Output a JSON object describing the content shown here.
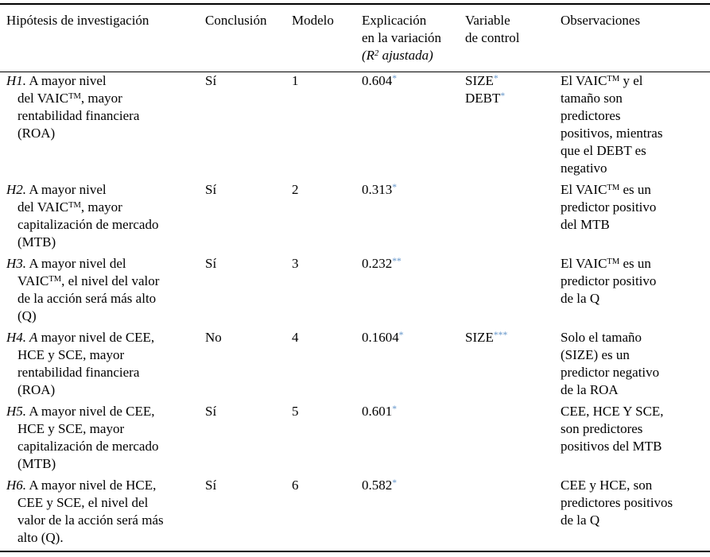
{
  "colors": {
    "significance_star": "#5f92c8",
    "text": "#000000",
    "rule": "#000000",
    "background": "#ffffff"
  },
  "table": {
    "headers": [
      {
        "text": "Hipótesis de investigación"
      },
      {
        "text": "Conclusión"
      },
      {
        "text": "Modelo"
      },
      {
        "rich": [
          {
            "t": "Explicación"
          },
          {
            "br": true
          },
          {
            "t": "en la variación"
          },
          {
            "br": true
          },
          {
            "t": "(R",
            "s": "i"
          },
          {
            "t": "2",
            "s": "i sup"
          },
          {
            "t": " ajustada)",
            "s": "i"
          }
        ]
      },
      {
        "rich": [
          {
            "t": "Variable"
          },
          {
            "br": true
          },
          {
            "t": "de control"
          }
        ]
      },
      {
        "text": "Observaciones"
      }
    ],
    "rows": [
      {
        "hypothesis": [
          {
            "t": "H1.",
            "s": "i"
          },
          {
            "t": " A mayor nivel"
          },
          {
            "br": true
          },
          {
            "t": "del VAIC"
          },
          {
            "t": "TM",
            "s": "sup"
          },
          {
            "t": ", mayor"
          },
          {
            "br": true
          },
          {
            "t": "rentabilidad financiera"
          },
          {
            "br": true
          },
          {
            "t": "(ROA)"
          }
        ],
        "conclusion": "Sí",
        "model": "1",
        "r2": [
          {
            "t": "0.604"
          },
          {
            "t": "*",
            "s": "star"
          }
        ],
        "control": [
          {
            "t": "SIZE"
          },
          {
            "t": "*",
            "s": "star"
          },
          {
            "br": true
          },
          {
            "t": "DEBT"
          },
          {
            "t": "*",
            "s": "star"
          }
        ],
        "observations": [
          {
            "t": "El VAIC"
          },
          {
            "t": "TM",
            "s": "sup"
          },
          {
            "t": " y el"
          },
          {
            "br": true
          },
          {
            "t": "tamaño son"
          },
          {
            "br": true
          },
          {
            "t": "predictores"
          },
          {
            "br": true
          },
          {
            "t": "positivos, mientras"
          },
          {
            "br": true
          },
          {
            "t": "que el DEBT es"
          },
          {
            "br": true
          },
          {
            "t": "negativo"
          }
        ]
      },
      {
        "hypothesis": [
          {
            "t": "H2.",
            "s": "i"
          },
          {
            "t": " A mayor nivel"
          },
          {
            "br": true
          },
          {
            "t": "del VAIC"
          },
          {
            "t": "TM",
            "s": "sup"
          },
          {
            "t": ", mayor"
          },
          {
            "br": true
          },
          {
            "t": "capitalización de mercado"
          },
          {
            "br": true
          },
          {
            "t": "(MTB)"
          }
        ],
        "conclusion": "Sí",
        "model": "2",
        "r2": [
          {
            "t": "0.313"
          },
          {
            "t": "*",
            "s": "star"
          }
        ],
        "control": [],
        "observations": [
          {
            "t": "El VAIC"
          },
          {
            "t": "TM",
            "s": "sup"
          },
          {
            "t": " es un"
          },
          {
            "br": true
          },
          {
            "t": "predictor positivo"
          },
          {
            "br": true
          },
          {
            "t": "del MTB"
          }
        ]
      },
      {
        "hypothesis": [
          {
            "t": "H3.",
            "s": "i"
          },
          {
            "t": " A mayor nivel del"
          },
          {
            "br": true
          },
          {
            "t": "VAIC"
          },
          {
            "t": "TM",
            "s": "sup"
          },
          {
            "t": ", el nivel del valor"
          },
          {
            "br": true
          },
          {
            "t": "de la acción será más alto"
          },
          {
            "br": true
          },
          {
            "t": "(Q)"
          }
        ],
        "conclusion": "Sí",
        "model": "3",
        "r2": [
          {
            "t": "0.232"
          },
          {
            "t": "**",
            "s": "star"
          }
        ],
        "control": [],
        "observations": [
          {
            "t": "El VAIC"
          },
          {
            "t": "TM",
            "s": "sup"
          },
          {
            "t": " es un"
          },
          {
            "br": true
          },
          {
            "t": "predictor positivo"
          },
          {
            "br": true
          },
          {
            "t": "de la Q"
          }
        ]
      },
      {
        "hypothesis": [
          {
            "t": "H4. A",
            "s": "i"
          },
          {
            "t": " mayor nivel de CEE,"
          },
          {
            "br": true
          },
          {
            "t": "HCE y SCE, mayor"
          },
          {
            "br": true
          },
          {
            "t": "rentabilidad financiera"
          },
          {
            "br": true
          },
          {
            "t": "(ROA)"
          }
        ],
        "conclusion": "No",
        "model": "4",
        "r2": [
          {
            "t": "0.1604"
          },
          {
            "t": "*",
            "s": "star"
          }
        ],
        "control": [
          {
            "t": "SIZE"
          },
          {
            "t": "***",
            "s": "star"
          }
        ],
        "observations": [
          {
            "t": "Solo el tamaño"
          },
          {
            "br": true
          },
          {
            "t": "(SIZE) es un"
          },
          {
            "br": true
          },
          {
            "t": "predictor negativo"
          },
          {
            "br": true
          },
          {
            "t": "de la ROA"
          }
        ]
      },
      {
        "hypothesis": [
          {
            "t": "H5.",
            "s": "i"
          },
          {
            "t": " A mayor nivel de CEE,"
          },
          {
            "br": true
          },
          {
            "t": "HCE y SCE, mayor"
          },
          {
            "br": true
          },
          {
            "t": "capitalización de mercado"
          },
          {
            "br": true
          },
          {
            "t": "(MTB)"
          }
        ],
        "conclusion": "Sí",
        "model": "5",
        "r2": [
          {
            "t": "0.601"
          },
          {
            "t": "*",
            "s": "star"
          }
        ],
        "control": [],
        "observations": [
          {
            "t": "CEE, HCE Y SCE,"
          },
          {
            "br": true
          },
          {
            "t": "son predictores"
          },
          {
            "br": true
          },
          {
            "t": "positivos del MTB"
          }
        ]
      },
      {
        "hypothesis": [
          {
            "t": "H6.",
            "s": "i"
          },
          {
            "t": " A mayor nivel de HCE,"
          },
          {
            "br": true
          },
          {
            "t": "CEE y SCE, el nivel del"
          },
          {
            "br": true
          },
          {
            "t": "valor de la acción será más"
          },
          {
            "br": true
          },
          {
            "t": "alto (Q)."
          }
        ],
        "conclusion": "Sí",
        "model": "6",
        "r2": [
          {
            "t": "0.582"
          },
          {
            "t": "*",
            "s": "star"
          }
        ],
        "control": [],
        "observations": [
          {
            "t": "CEE y HCE, son"
          },
          {
            "br": true
          },
          {
            "t": "predictores positivos"
          },
          {
            "br": true
          },
          {
            "t": "de la Q"
          }
        ]
      }
    ]
  }
}
